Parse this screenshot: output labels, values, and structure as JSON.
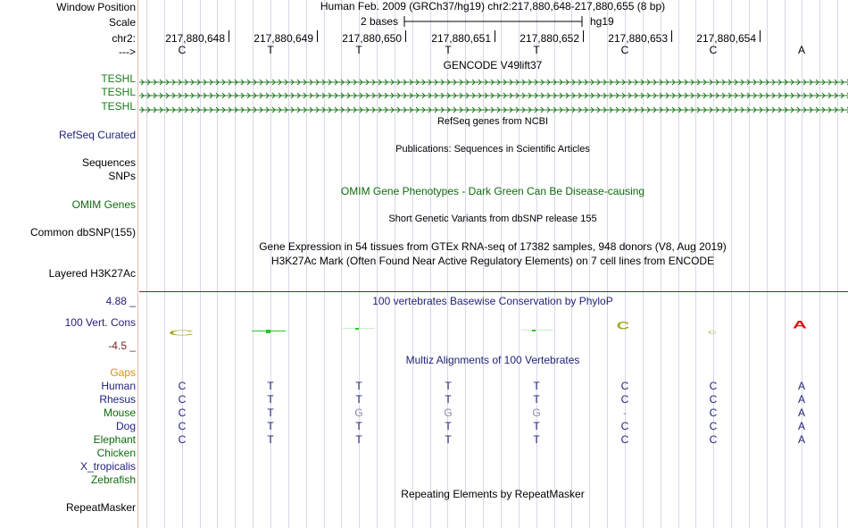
{
  "header": {
    "window_position_label": "Window Position",
    "scale_label": "Scale",
    "chrom_label": "chr2:",
    "strand_label": "--->",
    "position_text": "Human Feb. 2009 (GRCh37/hg19)   chr2:217,880,648-217,880,655 (8 bp)",
    "scale_bar_label": "2 bases",
    "scale_assembly": "hg19",
    "coordinates": [
      "217,880,648",
      "217,880,649",
      "217,880,650",
      "217,880,651",
      "217,880,652",
      "217,880,653",
      "217,880,654"
    ]
  },
  "reference_sequence": [
    "C",
    "T",
    "T",
    "T",
    "T",
    "C",
    "C",
    "A"
  ],
  "tracks": {
    "gencode_title": "GENCODE V49lift37",
    "gencode_items": [
      "TESHL",
      "TESHL",
      "TESHL"
    ],
    "refseq_title": "RefSeq genes from NCBI",
    "refseq_label": "RefSeq Curated",
    "publications_title": "Publications: Sequences in Scientific Articles",
    "sequences_label": "Sequences",
    "snps_label": "SNPs",
    "omim_title": "OMIM Gene Phenotypes - Dark Green Can Be Disease-causing",
    "omim_label": "OMIM Genes",
    "dbsnp_title": "Short Genetic Variants from dbSNP release 155",
    "dbsnp_label": "Common dbSNP(155)",
    "gtex_title": "Gene Expression in 54 tissues from GTEx RNA-seq of 17382 samples, 948 donors (V8, Aug 2019)",
    "h3k27ac_title": "H3K27Ac Mark (Often Found Near Active Regulatory Elements) on 7 cell lines from ENCODE",
    "h3k27ac_label": "Layered H3K27Ac",
    "phylop_title": "100 vertebrates Basewise Conservation by PhyloP",
    "phylop_label": "100 Vert. Cons",
    "phylop_max": "4.88 _",
    "phylop_min": "-4.5 _",
    "multiz_title": "Multiz Alignments of 100 Vertebrates",
    "gaps_label": "Gaps",
    "repeat_title": "Repeating Elements by RepeatMasker",
    "repeat_label": "RepeatMasker"
  },
  "alignments": [
    {
      "species": "Human",
      "bases": [
        "C",
        "T",
        "T",
        "T",
        "T",
        "C",
        "C",
        "A"
      ]
    },
    {
      "species": "Rhesus",
      "bases": [
        "C",
        "T",
        "T",
        "T",
        "T",
        "C",
        "C",
        "A"
      ]
    },
    {
      "species": "Mouse",
      "bases": [
        "C",
        "T",
        "G",
        "G",
        "G",
        "-",
        "C",
        "A"
      ]
    },
    {
      "species": "Dog",
      "bases": [
        "C",
        "T",
        "T",
        "T",
        "T",
        "C",
        "C",
        "A"
      ]
    },
    {
      "species": "Elephant",
      "bases": [
        "C",
        "T",
        "T",
        "T",
        "T",
        "C",
        "C",
        "A"
      ]
    },
    {
      "species": "Chicken",
      "bases": []
    },
    {
      "species": "X_tropicalis",
      "bases": []
    },
    {
      "species": "Zebrafish",
      "bases": []
    }
  ],
  "colors": {
    "dark": "#000000",
    "navy": "#1f1f7a",
    "green": "#0d6b0d",
    "gaps": "#dc8f18",
    "phylop_min": "#7a2424",
    "mismatch": "#8a8aaa",
    "olive": "#a9a929",
    "red": "#e01010",
    "bright_green": "#22cc22",
    "gencode": "#1c7a1c"
  }
}
